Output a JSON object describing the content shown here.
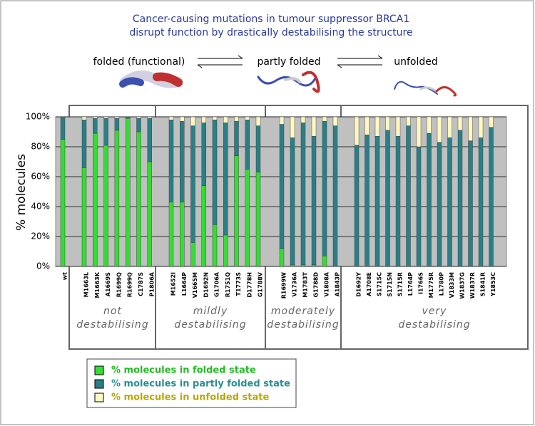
{
  "chart_data": {
    "type": "stacked_bar",
    "title": [
      "Cancer-causing mutations in tumour suppressor BRCA1",
      "disrupt function by drastically destabilising the structure"
    ],
    "state_labels": [
      "folded (functional)",
      "partly folded",
      "unfolded"
    ],
    "ylabel": "% molecules",
    "ylim": [
      0,
      100
    ],
    "yticks": [
      {
        "value": 0,
        "label": "0%"
      },
      {
        "value": 20,
        "label": "20%"
      },
      {
        "value": 40,
        "label": "40%"
      },
      {
        "value": 60,
        "label": "60%"
      },
      {
        "value": 80,
        "label": "80%"
      },
      {
        "value": 100,
        "label": "100%"
      }
    ],
    "grid": true,
    "categories": [
      "wt",
      "M1663L",
      "M1663K",
      "A1669S",
      "R1699Q",
      "R1699Q",
      "C1787S",
      "P1806A",
      "M1652I",
      "L1664P",
      "V1665M",
      "D1692N",
      "G1706A",
      "R1751Q",
      "T1773S",
      "D1778H",
      "G1788V",
      "R1699W",
      "V1736A",
      "M1783T",
      "G1788D",
      "V1808A",
      "A1843P",
      "D1692Y",
      "A1708E",
      "S1715C",
      "S1715N",
      "S1715R",
      "L1764P",
      "I1766S",
      "M1775R",
      "L1780P",
      "V1833M",
      "W1837G",
      "W1837R",
      "S1841R",
      "Y1853C"
    ],
    "groups": [
      [
        "not",
        "destabilising"
      ],
      [
        "mildly",
        "destabilising"
      ],
      [
        "moderately",
        "destabilising"
      ],
      [
        "very",
        "destabilising"
      ]
    ],
    "series": [
      {
        "name": "% molecules in folded state",
        "color": "#33dd33",
        "text_color": "#22bb22",
        "values": [
          85,
          66,
          89,
          81,
          91,
          99,
          90,
          70,
          43,
          43,
          16,
          54,
          28,
          21,
          74,
          65,
          63,
          12,
          1,
          1,
          1,
          7,
          0,
          0,
          0,
          0,
          0,
          0,
          0,
          0,
          0,
          0,
          0,
          0,
          0,
          0,
          0
        ]
      },
      {
        "name": "% molecules in partly folded state",
        "color": "#2a7f86",
        "text_color": "#2a8f96",
        "values": [
          15,
          32,
          10,
          18,
          8,
          1,
          9,
          29,
          55,
          54,
          78,
          42,
          70,
          75,
          23,
          33,
          31,
          83,
          85,
          95,
          86,
          90,
          94,
          81,
          88,
          87,
          91,
          87,
          94,
          80,
          89,
          83,
          86,
          91,
          84,
          86,
          93
        ]
      },
      {
        "name": "% molecules in unfolded state",
        "color": "#fff8c0",
        "text_color": "#b8a800",
        "values": [
          0,
          2,
          1,
          1,
          1,
          0,
          1,
          1,
          2,
          3,
          6,
          4,
          2,
          4,
          3,
          2,
          6,
          5,
          14,
          4,
          13,
          3,
          6,
          19,
          12,
          13,
          9,
          13,
          6,
          20,
          11,
          17,
          14,
          9,
          16,
          14,
          7
        ]
      }
    ]
  }
}
